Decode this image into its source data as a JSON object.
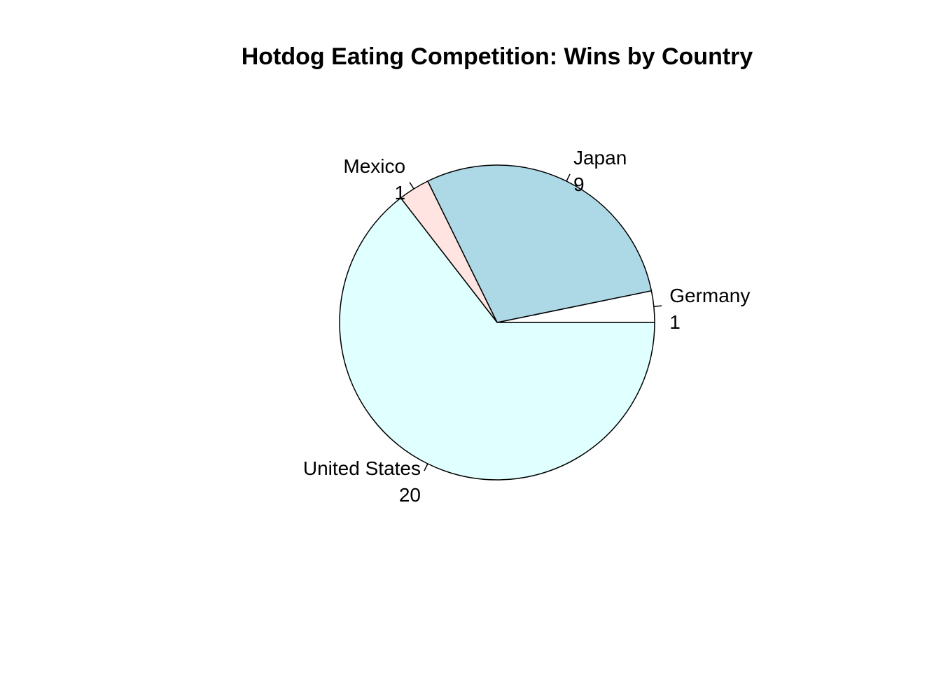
{
  "chart_data": {
    "type": "pie",
    "title": "Hotdog Eating Competition: Wins by Country",
    "slices": [
      {
        "label": "Germany",
        "value": 1,
        "color": "#ffffff"
      },
      {
        "label": "Japan",
        "value": 9,
        "color": "#add8e6"
      },
      {
        "label": "Mexico",
        "value": 1,
        "color": "#ffe4e1"
      },
      {
        "label": "United States",
        "value": 20,
        "color": "#e0ffff"
      }
    ],
    "start_angle_deg": 0,
    "direction": "counterclockwise",
    "border_color": "#000000"
  }
}
